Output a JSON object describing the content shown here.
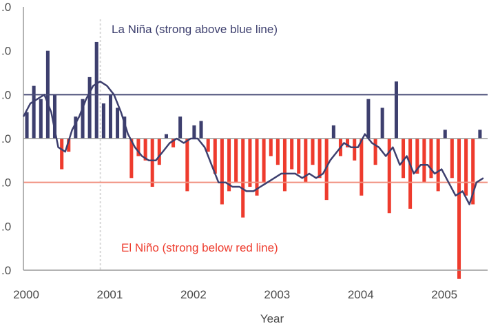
{
  "chart_data": {
    "type": "bar",
    "title": "",
    "xlabel": "Year",
    "ylabel": "",
    "ylim": [
      -3,
      3
    ],
    "xlim": [
      2000.0,
      2005.55
    ],
    "x_ticks": [
      "2000",
      "2001",
      "2002",
      "2003",
      "2004",
      "2005"
    ],
    "y_tick_values": [
      -3,
      -2,
      -1,
      0,
      1,
      2,
      3
    ],
    "y_tick_labels": [
      ".0",
      ".0",
      ".0",
      ".0",
      ".0",
      ".0",
      ".0"
    ],
    "grid": false,
    "vertical_marker_x": 2000.92,
    "thresholds": [
      {
        "value": 1.0,
        "color": "#4a4d78"
      },
      {
        "value": -1.0,
        "color": "#f0907f"
      }
    ],
    "annotations": {
      "la_nina": "La Niña (strong above blue line)",
      "el_nino": "El Niño (strong below red line)"
    },
    "colors": {
      "positive": "#3d3f6e",
      "negative": "#ee3b2d",
      "line": "#3d3f6e",
      "axis": "#9a9a9a",
      "marker": "#d8d8d8"
    },
    "series": [
      {
        "type": "bar",
        "x": [
          2000.0,
          2000.083,
          2000.167,
          2000.25,
          2000.333,
          2000.417,
          2000.5,
          2000.583,
          2000.667,
          2000.75,
          2000.833,
          2000.917,
          2001.0,
          2001.083,
          2001.167,
          2001.25,
          2001.333,
          2001.417,
          2001.5,
          2001.583,
          2001.667,
          2001.75,
          2001.833,
          2001.917,
          2002.0,
          2002.083,
          2002.167,
          2002.25,
          2002.333,
          2002.417,
          2002.5,
          2002.583,
          2002.667,
          2002.75,
          2002.833,
          2002.917,
          2003.0,
          2003.083,
          2003.167,
          2003.25,
          2003.333,
          2003.417,
          2003.5,
          2003.583,
          2003.667,
          2003.75,
          2003.833,
          2003.917,
          2004.0,
          2004.083,
          2004.167,
          2004.25,
          2004.333,
          2004.417,
          2004.5,
          2004.583,
          2004.667,
          2004.75,
          2004.833,
          2004.917,
          2005.0,
          2005.083,
          2005.167,
          2005.25,
          2005.333,
          2005.417
        ],
        "values": [
          0.6,
          1.2,
          0.9,
          2.0,
          1.0,
          -0.7,
          -0.3,
          0.5,
          0.9,
          1.4,
          2.2,
          0.8,
          1.0,
          0.7,
          0.5,
          -0.9,
          -0.4,
          -0.5,
          -1.1,
          -0.6,
          0.1,
          -0.2,
          0.5,
          -1.2,
          0.3,
          0.4,
          -0.3,
          -0.8,
          -1.5,
          -1.2,
          -1.0,
          -1.8,
          -1.1,
          -1.3,
          -1.0,
          -0.4,
          -0.6,
          -1.2,
          -0.7,
          -0.8,
          -1.0,
          -0.6,
          -0.9,
          -1.4,
          0.3,
          -0.4,
          -0.2,
          -0.5,
          -1.3,
          0.9,
          -0.6,
          0.7,
          -1.7,
          1.3,
          -0.9,
          -1.6,
          -0.8,
          -1.0,
          -0.9,
          -1.2,
          0.2,
          -0.9,
          -3.2,
          -1.3,
          -1.5,
          0.2
        ]
      },
      {
        "type": "line",
        "name": "",
        "x": [
          2000.0,
          2000.083,
          2000.167,
          2000.25,
          2000.333,
          2000.417,
          2000.5,
          2000.583,
          2000.667,
          2000.75,
          2000.833,
          2000.917,
          2001.0,
          2001.083,
          2001.167,
          2001.25,
          2001.333,
          2001.417,
          2001.5,
          2001.583,
          2001.667,
          2001.75,
          2001.833,
          2001.917,
          2002.0,
          2002.083,
          2002.167,
          2002.25,
          2002.333,
          2002.417,
          2002.5,
          2002.583,
          2002.667,
          2002.75,
          2002.833,
          2002.917,
          2003.0,
          2003.083,
          2003.167,
          2003.25,
          2003.333,
          2003.417,
          2003.5,
          2003.583,
          2003.667,
          2003.75,
          2003.833,
          2003.917,
          2004.0,
          2004.083,
          2004.167,
          2004.25,
          2004.333,
          2004.417,
          2004.5,
          2004.583,
          2004.667,
          2004.75,
          2004.833,
          2004.917,
          2005.0,
          2005.083,
          2005.167,
          2005.25,
          2005.333,
          2005.417,
          2005.5
        ],
        "values": [
          0.5,
          0.8,
          0.9,
          1.0,
          0.6,
          -0.2,
          -0.3,
          0.2,
          0.5,
          0.9,
          1.2,
          1.3,
          1.2,
          1.0,
          0.6,
          0.1,
          -0.2,
          -0.4,
          -0.5,
          -0.5,
          -0.3,
          -0.1,
          0.0,
          -0.1,
          0.0,
          0.0,
          -0.2,
          -0.6,
          -1.0,
          -1.0,
          -1.1,
          -1.1,
          -1.2,
          -1.2,
          -1.1,
          -1.0,
          -0.9,
          -0.8,
          -0.8,
          -0.8,
          -0.9,
          -0.8,
          -0.9,
          -0.8,
          -0.5,
          -0.3,
          -0.1,
          -0.2,
          -0.2,
          0.1,
          -0.1,
          -0.2,
          -0.4,
          -0.2,
          -0.6,
          -0.4,
          -0.8,
          -0.6,
          -0.6,
          -0.8,
          -0.7,
          -1.0,
          -1.3,
          -1.2,
          -1.5,
          -1.0,
          -0.9
        ]
      }
    ]
  }
}
